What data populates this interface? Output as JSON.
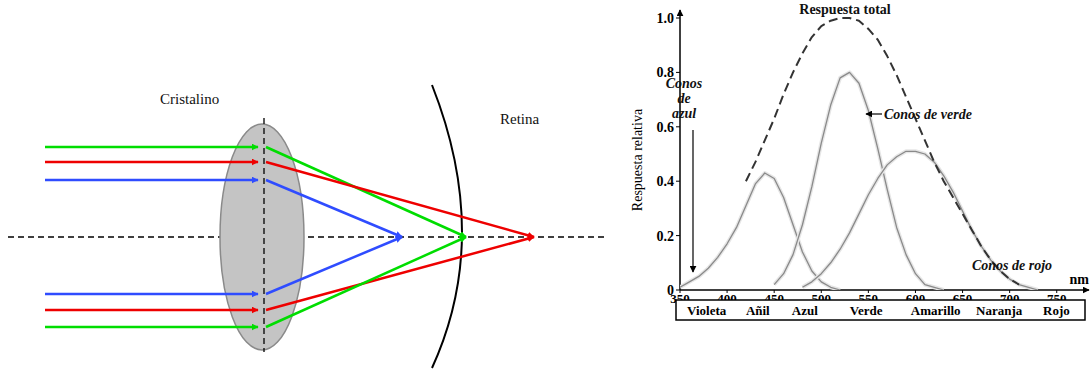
{
  "diagram": {
    "lens_label": "Cristalino",
    "retina_label": "Retina"
  },
  "chart_data": {
    "type": "line",
    "x_label": "nm",
    "y_label": "Respuesta relativa",
    "x": [
      350,
      360,
      370,
      380,
      390,
      400,
      410,
      420,
      430,
      440,
      450,
      460,
      470,
      480,
      490,
      500,
      510,
      520,
      530,
      540,
      550,
      560,
      570,
      580,
      590,
      600,
      610,
      620,
      630,
      640,
      650,
      660,
      670,
      680,
      690,
      700,
      710,
      720,
      730,
      740,
      750
    ],
    "series": [
      {
        "name": "Conos de azul",
        "color": "#8a8a8a",
        "line_style": "solid",
        "values": [
          0.01,
          0.03,
          0.05,
          0.08,
          0.12,
          0.17,
          0.23,
          0.31,
          0.39,
          0.43,
          0.41,
          0.34,
          0.24,
          0.14,
          0.07,
          0.03,
          0.01,
          0,
          null,
          null,
          null,
          null,
          null,
          null,
          null,
          null,
          null,
          null,
          null,
          null,
          null,
          null,
          null,
          null,
          null,
          null,
          null,
          null,
          null,
          null,
          null
        ]
      },
      {
        "name": "Conos de verde",
        "color": "#8a8a8a",
        "line_style": "solid",
        "values": [
          null,
          null,
          null,
          null,
          null,
          null,
          null,
          null,
          null,
          null,
          0.02,
          0.06,
          0.13,
          0.24,
          0.38,
          0.54,
          0.68,
          0.78,
          0.8,
          0.76,
          0.66,
          0.52,
          0.37,
          0.23,
          0.13,
          0.06,
          0.02,
          0.01,
          0,
          null,
          null,
          null,
          null,
          null,
          null,
          null,
          null,
          null,
          null,
          null,
          null
        ]
      },
      {
        "name": "Conos de rojo",
        "color": "#8a8a8a",
        "line_style": "solid",
        "values": [
          null,
          null,
          null,
          null,
          null,
          null,
          null,
          null,
          null,
          null,
          null,
          null,
          null,
          0.01,
          0.03,
          0.06,
          0.1,
          0.15,
          0.21,
          0.28,
          0.35,
          0.41,
          0.46,
          0.49,
          0.51,
          0.51,
          0.5,
          0.47,
          0.42,
          0.36,
          0.29,
          0.22,
          0.16,
          0.11,
          0.07,
          0.04,
          0.02,
          0.01,
          0,
          null,
          null
        ]
      },
      {
        "name": "Respuesta total",
        "color": "#333333",
        "line_style": "dashed",
        "values": [
          null,
          null,
          null,
          null,
          null,
          null,
          null,
          0.4,
          0.47,
          0.55,
          0.63,
          0.72,
          0.8,
          0.87,
          0.93,
          0.97,
          0.99,
          1.0,
          1.0,
          0.99,
          0.96,
          0.92,
          0.86,
          0.79,
          0.71,
          0.63,
          0.55,
          0.47,
          0.4,
          0.34,
          0.28,
          0.22,
          0.16,
          0.11,
          0.07,
          0.04,
          0.02,
          null,
          null,
          null,
          null
        ]
      }
    ],
    "xlim": [
      350,
      780
    ],
    "xticks": [
      350,
      400,
      450,
      500,
      550,
      600,
      650,
      700,
      750
    ],
    "ylim": [
      0,
      1
    ],
    "yticks": [
      0,
      0.2,
      0.4,
      0.6,
      0.8,
      {
        "value": 1,
        "label": "1.0"
      }
    ],
    "grid": false,
    "band_labels": [
      "Violeta",
      "Añil",
      "Azul",
      "Verde",
      "Amarillo",
      "Naranja",
      "Rojo"
    ]
  }
}
